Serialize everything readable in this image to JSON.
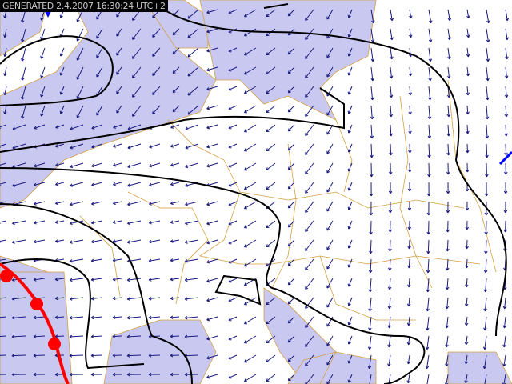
{
  "header": {
    "generated_label": "GENERATED 2.4.2007 16:30:24 UTC+2"
  },
  "colors": {
    "sea": "#c8c8f0",
    "land": "#ffffff",
    "isobar": "#000000",
    "border": "#d4a040",
    "wind_arrow": "#1a1a80",
    "warm_front": "#ff0000",
    "cold_front": "#0000ff"
  },
  "map": {
    "type": "weather-map",
    "region": "Europe",
    "layers": [
      "isobars",
      "wind-arrows",
      "warm-front",
      "cold-front",
      "country-borders"
    ]
  }
}
